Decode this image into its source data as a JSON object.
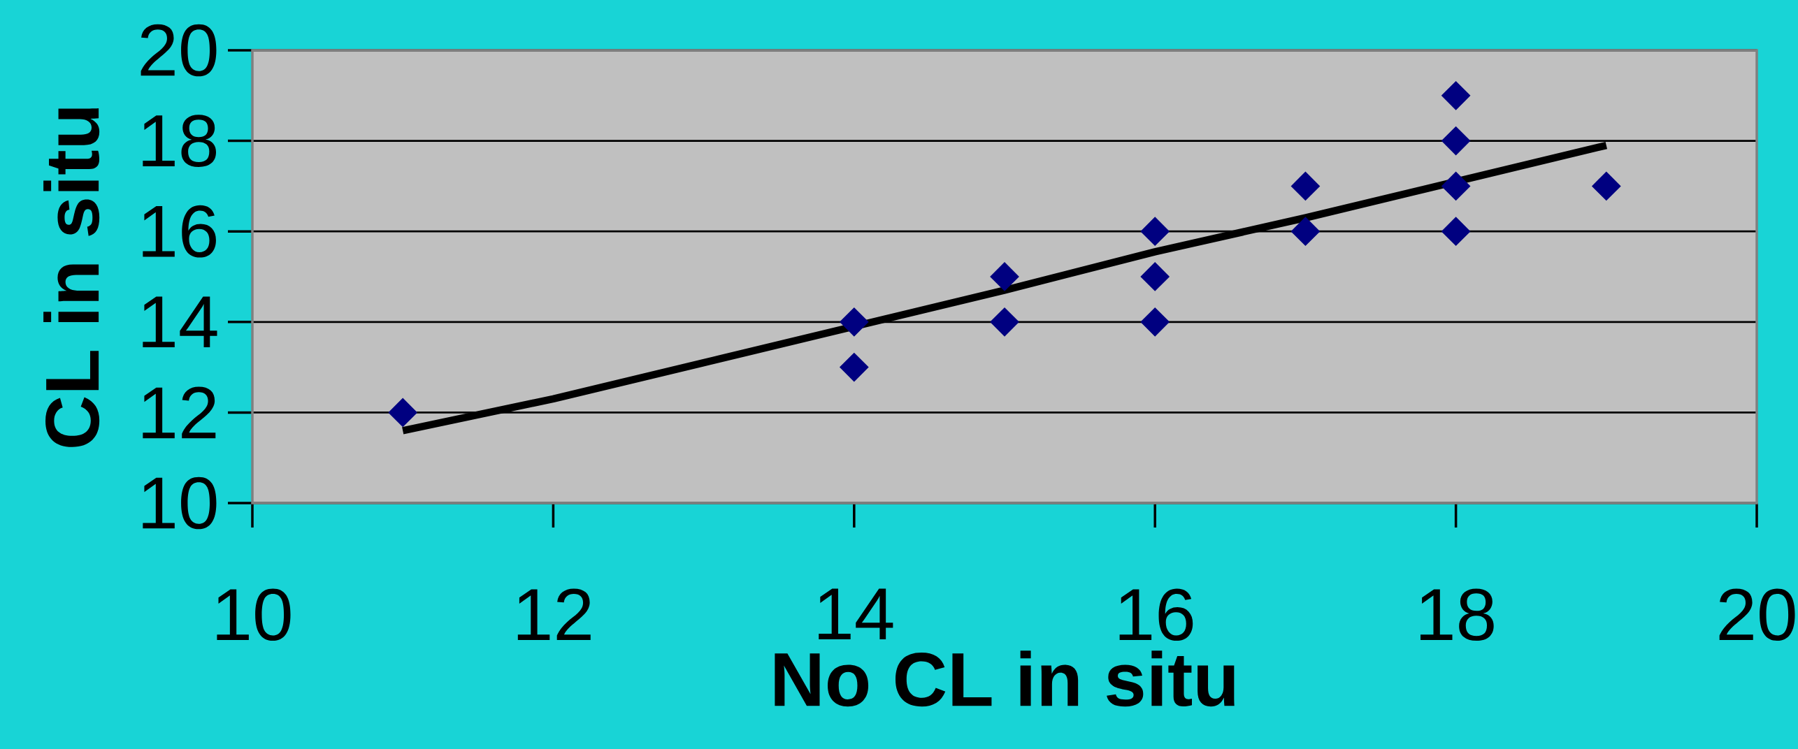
{
  "chart_data": {
    "type": "scatter",
    "xlabel": "No CL in situ",
    "ylabel": "CL in situ",
    "xlim": [
      10,
      20
    ],
    "ylim": [
      10,
      20
    ],
    "xticks": [
      10,
      12,
      14,
      16,
      18,
      20
    ],
    "yticks": [
      10,
      12,
      14,
      16,
      18,
      20
    ],
    "grid": "y",
    "series": [
      {
        "type": "scatter",
        "color": "#000080",
        "marker": "diamond",
        "x": [
          11,
          14,
          14,
          15,
          15,
          16,
          16,
          16,
          17,
          17,
          18,
          18,
          18,
          18,
          19
        ],
        "values": [
          12,
          14,
          13,
          15,
          14,
          16,
          15,
          14,
          17,
          16,
          19,
          18,
          17,
          16,
          17
        ]
      },
      {
        "type": "line",
        "color": "#000000",
        "marker": "none",
        "line_style": "solid",
        "x": [
          11,
          12,
          13,
          15,
          16,
          17,
          19
        ],
        "values": [
          11.6,
          12.3,
          13.1,
          14.7,
          15.55,
          16.3,
          17.9
        ]
      }
    ]
  }
}
